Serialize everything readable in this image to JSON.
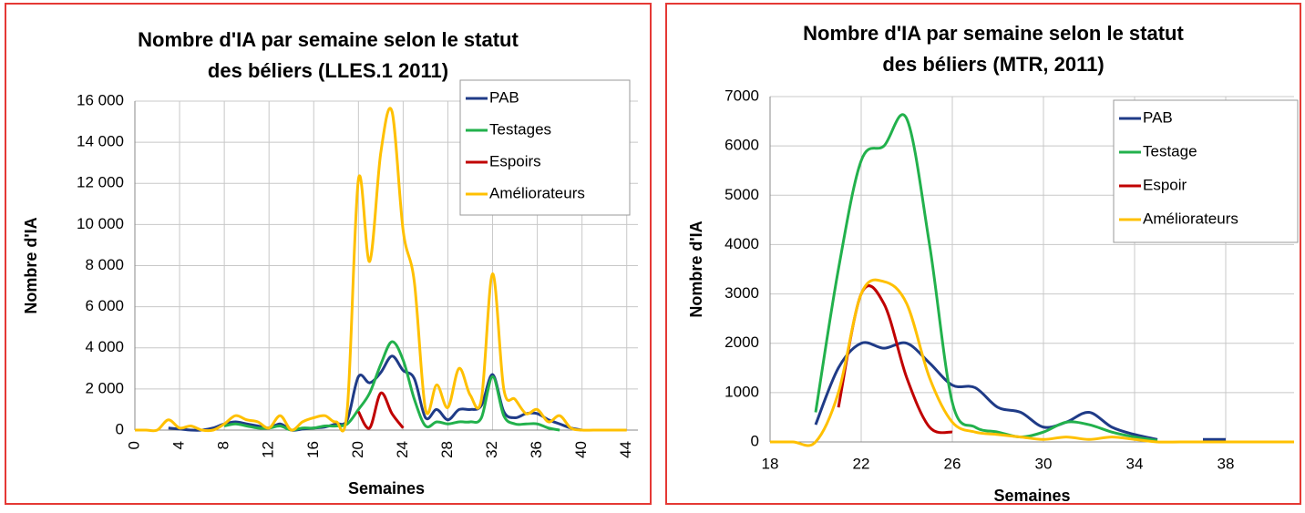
{
  "chart_data": [
    {
      "type": "line",
      "title": [
        "Nombre d'IA par semaine selon le statut",
        "des béliers (LLES.1 2011)"
      ],
      "x_label": "Semaines",
      "y_label": "Nombre d'IA",
      "x": [
        0,
        1,
        2,
        3,
        4,
        5,
        6,
        7,
        8,
        9,
        10,
        11,
        12,
        13,
        14,
        15,
        16,
        17,
        18,
        19,
        20,
        21,
        22,
        23,
        24,
        25,
        26,
        27,
        28,
        29,
        30,
        31,
        32,
        33,
        34,
        35,
        36,
        37,
        38,
        39,
        40,
        41,
        42,
        43,
        44
      ],
      "xlim": [
        0,
        45
      ],
      "xticks": [
        0,
        4,
        8,
        12,
        16,
        20,
        24,
        28,
        32,
        36,
        40,
        44
      ],
      "ylim": [
        0,
        16000
      ],
      "yticks": [
        0,
        {
          "value": 2000,
          "label": "2 000"
        },
        {
          "value": 4000,
          "label": "4 000"
        },
        {
          "value": 6000,
          "label": "6 000"
        },
        {
          "value": 8000,
          "label": "8 000"
        },
        {
          "value": 10000,
          "label": "10 000"
        },
        {
          "value": 12000,
          "label": "12 000"
        },
        {
          "value": 14000,
          "label": "14 000"
        },
        {
          "value": 16000,
          "label": "16 000"
        }
      ],
      "grid": true,
      "legend": "upper right",
      "series": [
        {
          "name": "PAB",
          "color": "#1f3b87",
          "values": [
            null,
            null,
            null,
            100,
            50,
            0,
            0,
            100,
            300,
            400,
            300,
            200,
            100,
            300,
            0,
            50,
            100,
            150,
            300,
            500,
            2600,
            2300,
            2800,
            3600,
            2900,
            2500,
            600,
            1000,
            500,
            1000,
            1000,
            1200,
            2700,
            900,
            600,
            800,
            800,
            500,
            300,
            100,
            0,
            null,
            null,
            null,
            null
          ]
        },
        {
          "name": "Testages",
          "color": "#22b14c",
          "values": [
            null,
            null,
            null,
            null,
            null,
            null,
            null,
            null,
            200,
            300,
            200,
            100,
            100,
            200,
            0,
            100,
            100,
            200,
            200,
            300,
            1000,
            1800,
            3200,
            4300,
            3400,
            1500,
            200,
            400,
            300,
            400,
            400,
            600,
            2600,
            700,
            300,
            300,
            300,
            100,
            0,
            null,
            null,
            null,
            null,
            null,
            null
          ]
        },
        {
          "name": "Espoirs",
          "color": "#c00000",
          "values": [
            null,
            null,
            null,
            null,
            null,
            null,
            null,
            null,
            null,
            null,
            null,
            null,
            null,
            null,
            null,
            null,
            null,
            null,
            null,
            null,
            900,
            100,
            1800,
            800,
            100,
            null,
            null,
            null,
            null,
            null,
            null,
            null,
            null,
            null,
            null,
            null,
            null,
            null,
            null,
            null,
            null,
            null,
            null,
            null,
            null
          ]
        },
        {
          "name": "Améliorateurs",
          "color": "#ffc000",
          "values": [
            0,
            0,
            0,
            500,
            100,
            200,
            0,
            0,
            300,
            700,
            500,
            400,
            100,
            700,
            0,
            400,
            600,
            700,
            400,
            1000,
            12200,
            8200,
            13500,
            15500,
            9700,
            7200,
            1000,
            2200,
            1100,
            3000,
            1700,
            1500,
            7600,
            2000,
            1500,
            800,
            1000,
            400,
            700,
            100,
            0,
            0,
            0,
            0,
            0
          ]
        }
      ]
    },
    {
      "type": "line",
      "title": [
        "Nombre d'IA par semaine selon le statut",
        "des béliers  (MTR, 2011)"
      ],
      "x_label": "Semaines",
      "y_label": "Nombre d'IA",
      "x": [
        18,
        19,
        20,
        21,
        22,
        23,
        24,
        25,
        26,
        27,
        28,
        29,
        30,
        31,
        32,
        33,
        34,
        35,
        36,
        37,
        38,
        39,
        40,
        41
      ],
      "xlim": [
        18,
        41
      ],
      "xticks": [
        18,
        22,
        26,
        30,
        34,
        38
      ],
      "ylim": [
        0,
        7000
      ],
      "yticks": [
        0,
        1000,
        2000,
        3000,
        4000,
        5000,
        6000,
        7000
      ],
      "grid": true,
      "legend": "upper right",
      "series": [
        {
          "name": "PAB",
          "color": "#1f3b87",
          "values": [
            null,
            null,
            350,
            1500,
            2000,
            1900,
            2000,
            1600,
            1150,
            1100,
            700,
            600,
            300,
            400,
            600,
            300,
            150,
            50,
            null,
            50,
            50,
            null,
            null,
            null
          ]
        },
        {
          "name": "Testage",
          "color": "#22b14c",
          "values": [
            null,
            null,
            600,
            3500,
            5700,
            6000,
            6550,
            4000,
            800,
            300,
            200,
            100,
            200,
            400,
            350,
            200,
            100,
            30,
            null,
            null,
            null,
            null,
            null,
            null
          ]
        },
        {
          "name": "Espoir",
          "color": "#c00000",
          "values": [
            null,
            null,
            null,
            700,
            3000,
            2800,
            1300,
            300,
            200,
            null,
            null,
            null,
            null,
            null,
            null,
            null,
            null,
            null,
            null,
            null,
            null,
            null,
            null,
            null
          ]
        },
        {
          "name": "Améliorateurs",
          "color": "#ffc000",
          "values": [
            0,
            0,
            0,
            1000,
            3000,
            3250,
            2800,
            1300,
            400,
            200,
            150,
            100,
            50,
            100,
            50,
            100,
            50,
            0,
            0,
            0,
            0,
            0,
            0,
            0
          ]
        }
      ]
    }
  ]
}
